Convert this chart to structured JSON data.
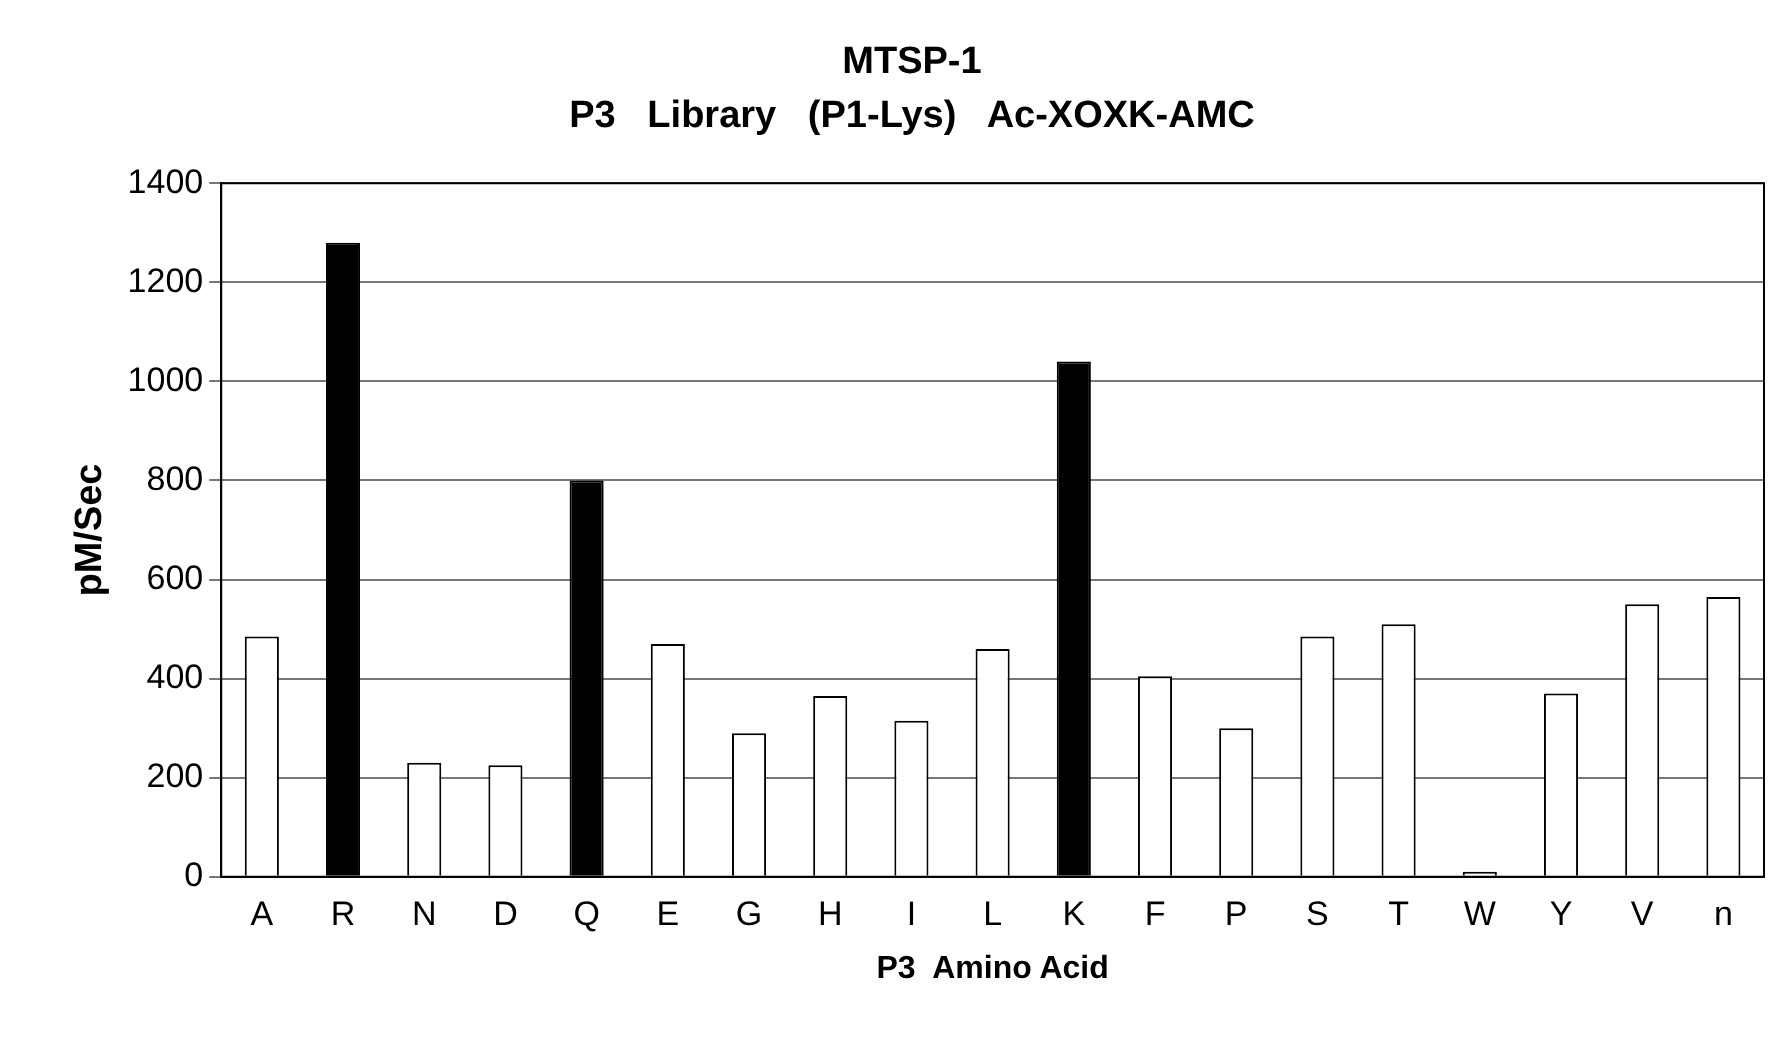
{
  "chart_data": {
    "type": "bar",
    "title": "MTSP-1",
    "subtitle": "P3   Library   (P1-Lys)   Ac-XOXK-AMC",
    "xlabel": "P3  Amino Acid",
    "ylabel": "pM/Sec",
    "categories": [
      "A",
      "R",
      "N",
      "D",
      "Q",
      "E",
      "G",
      "H",
      "I",
      "L",
      "K",
      "F",
      "P",
      "S",
      "T",
      "W",
      "Y",
      "V",
      "n"
    ],
    "values": [
      485,
      1280,
      230,
      225,
      800,
      470,
      290,
      365,
      315,
      460,
      1040,
      405,
      300,
      485,
      510,
      10,
      370,
      550,
      565
    ],
    "colors": [
      "#ffffff",
      "#000000",
      "#ffffff",
      "#ffffff",
      "#000000",
      "#ffffff",
      "#ffffff",
      "#ffffff",
      "#ffffff",
      "#ffffff",
      "#000000",
      "#ffffff",
      "#ffffff",
      "#ffffff",
      "#ffffff",
      "#ffffff",
      "#ffffff",
      "#ffffff",
      "#ffffff"
    ],
    "ylim": [
      0,
      1400
    ],
    "yticks": [
      0,
      200,
      400,
      600,
      800,
      1000,
      1200,
      1400
    ],
    "grid": "y",
    "legend": false
  }
}
